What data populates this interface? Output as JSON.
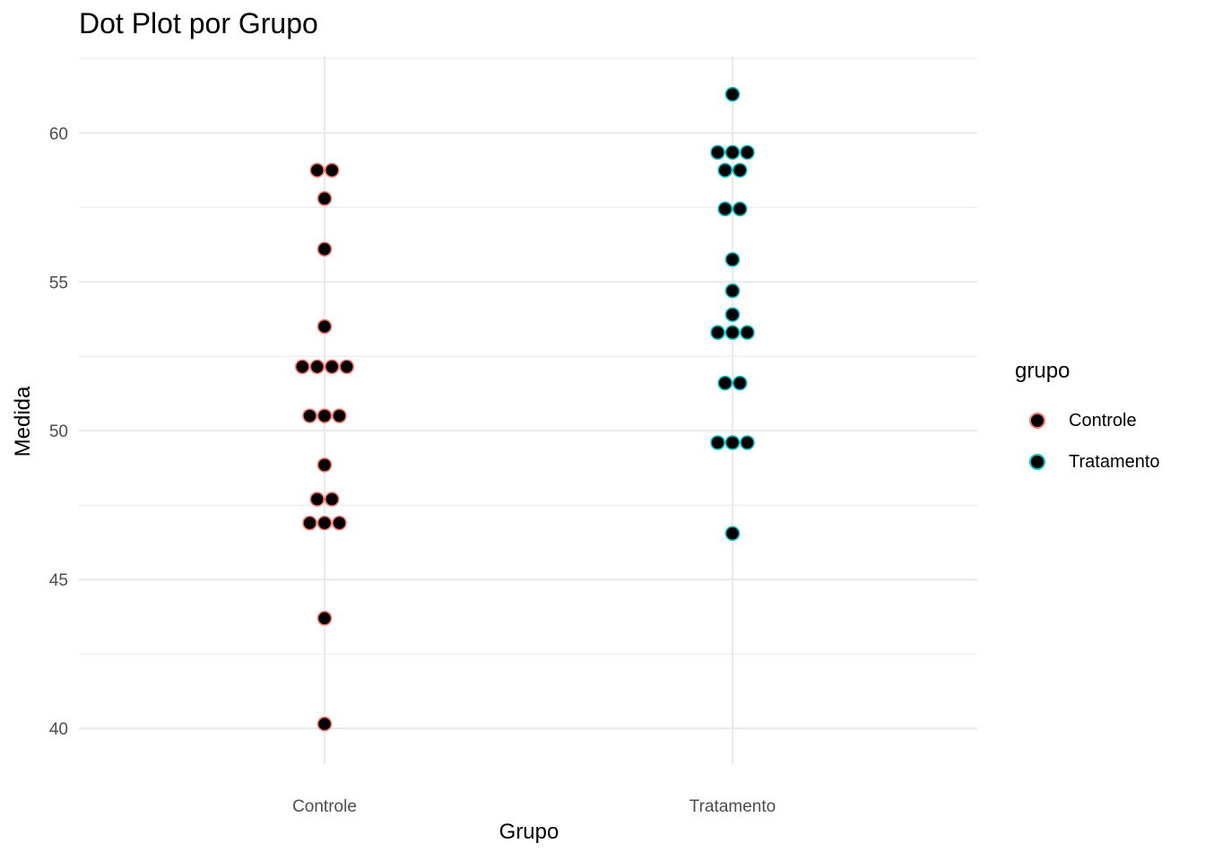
{
  "chart_data": {
    "type": "scatter",
    "title": "Dot Plot por Grupo",
    "xlabel": "Grupo",
    "ylabel": "Medida",
    "categories": [
      "Controle",
      "Tratamento"
    ],
    "ylim": [
      38.8,
      62.6
    ],
    "yticks": [
      40,
      45,
      50,
      55,
      60
    ],
    "grid": true,
    "legend": {
      "title": "grupo",
      "position": "right"
    },
    "series": [
      {
        "name": "Controle",
        "color": "#F8766D",
        "values": [
          58.75,
          58.75,
          57.8,
          56.1,
          53.5,
          52.15,
          52.15,
          52.15,
          52.15,
          50.5,
          50.5,
          50.5,
          48.85,
          47.7,
          47.7,
          46.9,
          46.9,
          46.9,
          43.7,
          40.15
        ]
      },
      {
        "name": "Tratamento",
        "color": "#00BFC4",
        "values": [
          61.3,
          59.35,
          59.35,
          59.35,
          58.75,
          58.75,
          57.45,
          57.45,
          55.75,
          54.7,
          53.9,
          53.3,
          53.3,
          53.3,
          51.6,
          51.6,
          49.6,
          49.6,
          49.6,
          46.55
        ]
      }
    ]
  }
}
